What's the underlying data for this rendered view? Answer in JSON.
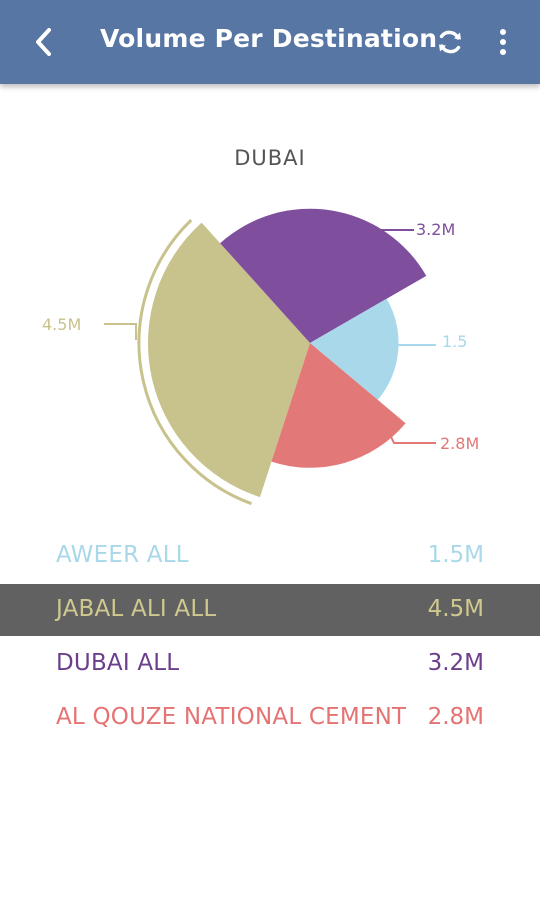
{
  "header": {
    "title": "Volume Per Destination"
  },
  "chart_data": {
    "type": "pie",
    "title": "DUBAI",
    "variant": "rose",
    "slices": [
      {
        "label": "JABAL ALI ALL",
        "value": 4.5,
        "callout": "4.5M",
        "color": "#c8c28d"
      },
      {
        "label": "DUBAI ALL",
        "value": 3.2,
        "callout": "3.2M",
        "color": "#7f4f9e"
      },
      {
        "label": "AWEER ALL",
        "value": 1.5,
        "callout": "1.5",
        "color": "#a8d8ea"
      },
      {
        "label": "AL QOUZE NATIONAL CEMENT",
        "value": 2.8,
        "callout": "2.8M",
        "color": "#e27878"
      }
    ],
    "selected": "JABAL ALI ALL"
  },
  "legend": [
    {
      "name": "AWEER ALL",
      "value": "1.5M",
      "color": "#a8d8ea",
      "selected": false
    },
    {
      "name": "JABAL ALI ALL",
      "value": "4.5M",
      "color": "#d0c98f",
      "selected": true
    },
    {
      "name": "DUBAI ALL",
      "value": "3.2M",
      "color": "#6b3f8c",
      "selected": false
    },
    {
      "name": "AL QOUZE NATIONAL CEMENT",
      "value": "2.8M",
      "color": "#e57373",
      "selected": false
    }
  ]
}
